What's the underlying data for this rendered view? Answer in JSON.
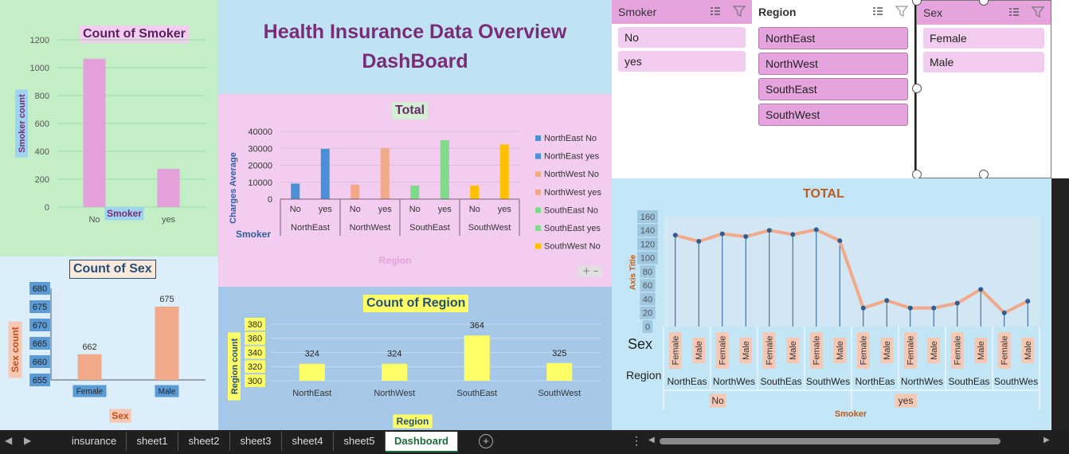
{
  "dashboard": {
    "title_line1": "Health Insurance Data Overview",
    "title_line2": "DashBoard"
  },
  "slicers": [
    {
      "title": "Smoker",
      "items": [
        {
          "label": "No",
          "selected": false
        },
        {
          "label": "yes",
          "selected": false
        }
      ]
    },
    {
      "title": "Region",
      "items": [
        {
          "label": "NorthEast",
          "selected": true
        },
        {
          "label": "NorthWest",
          "selected": true
        },
        {
          "label": "SouthEast",
          "selected": true
        },
        {
          "label": "SouthWest",
          "selected": true
        }
      ]
    },
    {
      "title": "Sex",
      "items": [
        {
          "label": "Female",
          "selected": false
        },
        {
          "label": "Male",
          "selected": false
        }
      ]
    }
  ],
  "sheet_tabs": [
    {
      "label": "insurance"
    },
    {
      "label": "sheet1"
    },
    {
      "label": "sheet2"
    },
    {
      "label": "sheet3"
    },
    {
      "label": "sheet4"
    },
    {
      "label": "sheet5"
    },
    {
      "label": "Dashboard",
      "active": true
    }
  ],
  "colors": {
    "bar_pink": "#e4a0d8",
    "bar_salmon": "#f2a98a",
    "bar_yellow": "#ffff66",
    "line_orange": "#f2a98a",
    "marker_blue": "#2b5f93"
  },
  "chart_data": [
    {
      "id": "count-of-smoker",
      "type": "bar",
      "title": "Count of Smoker",
      "xlabel": "Smoker",
      "ylabel": "Smoker count",
      "categories": [
        "No",
        "yes"
      ],
      "values": [
        1064,
        274
      ],
      "ylim": [
        0,
        1200
      ],
      "yticks": [
        0,
        200,
        400,
        600,
        800,
        1000,
        1200
      ],
      "grid": true
    },
    {
      "id": "total-charges-average",
      "type": "bar",
      "title": "Total",
      "xlabel": "Region",
      "ylabel": "Charges Average",
      "row_field": "Smoker",
      "ylim": [
        0,
        40000
      ],
      "yticks": [
        0,
        10000,
        20000,
        30000,
        40000
      ],
      "grid": true,
      "groups": [
        "NorthEast",
        "NorthWest",
        "SouthEast",
        "SouthWest"
      ],
      "subcategories": [
        "No",
        "yes"
      ],
      "series": [
        {
          "name": "NorthEast No",
          "color": "#4a90d9",
          "group": "NorthEast",
          "sub": "No",
          "value": 9200
        },
        {
          "name": "NorthEast yes",
          "color": "#4a90d9",
          "group": "NorthEast",
          "sub": "yes",
          "value": 29700
        },
        {
          "name": "NorthWest No",
          "color": "#f2a98a",
          "group": "NorthWest",
          "sub": "No",
          "value": 8600
        },
        {
          "name": "NorthWest yes",
          "color": "#f2a98a",
          "group": "NorthWest",
          "sub": "yes",
          "value": 30200
        },
        {
          "name": "SouthEast No",
          "color": "#7edb8a",
          "group": "SouthEast",
          "sub": "No",
          "value": 8000
        },
        {
          "name": "SouthEast yes",
          "color": "#7edb8a",
          "group": "SouthEast",
          "sub": "yes",
          "value": 34800
        },
        {
          "name": "SouthWest No",
          "color": "#ffc000",
          "group": "SouthWest",
          "sub": "No",
          "value": 8000
        },
        {
          "name": "SouthWest yes",
          "color": "#ffc000",
          "group": "SouthWest",
          "sub": "yes",
          "value": 32300
        }
      ],
      "legend_visible": [
        "NorthEast No",
        "NorthEast yes",
        "NorthWest No",
        "NorthWest yes",
        "SouthEast No",
        "SouthEast yes",
        "SouthWest No"
      ],
      "legend_position": "right"
    },
    {
      "id": "count-of-sex",
      "type": "bar",
      "title": "Count of Sex",
      "xlabel": "Sex",
      "ylabel": "Sex count",
      "categories": [
        "Female",
        "Male"
      ],
      "values": [
        662,
        675
      ],
      "data_labels": [
        "662",
        "675"
      ],
      "ylim": [
        655,
        680
      ],
      "yticks": [
        655,
        660,
        665,
        670,
        675,
        680
      ],
      "grid": false
    },
    {
      "id": "count-of-region",
      "type": "bar",
      "title": "Count of Region",
      "xlabel": "Region",
      "ylabel": "Region count",
      "categories": [
        "NorthEast",
        "NorthWest",
        "SouthEast",
        "SouthWest"
      ],
      "values": [
        324,
        324,
        364,
        325
      ],
      "data_labels": [
        "324",
        "324",
        "364",
        "325"
      ],
      "ylim": [
        300,
        380
      ],
      "yticks": [
        300,
        320,
        340,
        360,
        380
      ],
      "grid": true
    },
    {
      "id": "total-line",
      "type": "line",
      "title": "TOTAL",
      "ylabel": "Axis Title",
      "xlabel": "Smoker",
      "field_labels": [
        "Sex",
        "Region"
      ],
      "ylim": [
        0,
        160
      ],
      "yticks": [
        0,
        20,
        40,
        60,
        80,
        100,
        120,
        140,
        160
      ],
      "grid": false,
      "smoker_groups": [
        "No",
        "yes"
      ],
      "region_groups": [
        "NorthEast",
        "NorthWest",
        "SouthEast",
        "SouthWest",
        "NorthEast",
        "NorthWest",
        "SouthEast",
        "SouthWest"
      ],
      "region_display": [
        "NorthEas",
        "NorthWes",
        "SouthEas",
        "SouthWes",
        "NorthEas",
        "NorthWes",
        "SouthEas",
        "SouthWes"
      ],
      "sex_categories": [
        "Female",
        "Male",
        "Female",
        "Male",
        "Female",
        "Male",
        "Female",
        "Male",
        "Female",
        "Male",
        "Female",
        "Male",
        "Female",
        "Male",
        "Female",
        "Male"
      ],
      "values": [
        133,
        124,
        135,
        131,
        140,
        134,
        141,
        125,
        27,
        38,
        27,
        27,
        34,
        54,
        20,
        37
      ]
    }
  ]
}
